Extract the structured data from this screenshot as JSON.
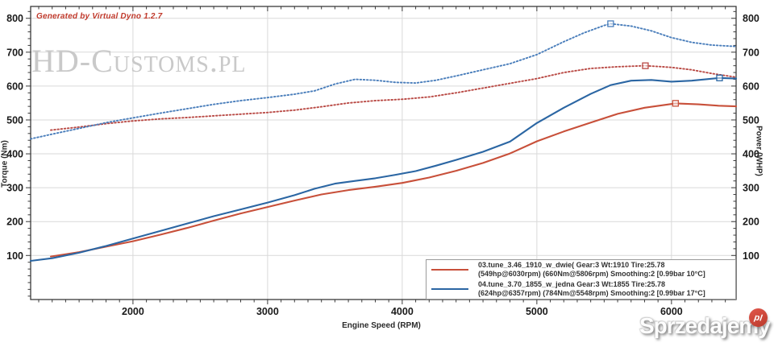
{
  "branding": {
    "generated_by": "Generated by Virtual Dyno 1.2.7",
    "watermark": "HD-Customs.pl",
    "site_logo": {
      "word": "Sprzedajemy",
      "badge": "pl",
      "badge_color": "#c0392b"
    }
  },
  "colors": {
    "red_dotted": "#b94a45",
    "red_solid": "#c8503a",
    "blue_dotted": "#4a7ebb",
    "blue_solid": "#2b66a3",
    "grid": "#d9d9d9",
    "spine": "#3a3a3a",
    "tick_label": "#1a1a1a"
  },
  "legend": {
    "entries": [
      {
        "color": "#c8503a",
        "line1": "03.tune_3.46_1910_w_dwie( Gear:3 Wt:1910 Tire:25.78",
        "line2": "(549hp@6030rpm) (660Nm@5806rpm) Smoothing:2 [0.99bar 10°C]"
      },
      {
        "color": "#2b66a3",
        "line1": "04.tune_3.70_1855_w_jedna Gear:3 Wt:1855 Tire:25.78",
        "line2": "(624hp@6357rpm) (784Nm@5548rpm) Smoothing:2 [0.99bar 17°C]"
      }
    ]
  },
  "chart_data": {
    "type": "line",
    "title": "",
    "xlabel": "Engine Speed (RPM)",
    "ylabel_left": "Torque (Nm)",
    "ylabel_right": "Power (WHP)",
    "xlim": [
      1240,
      6480
    ],
    "ylim": [
      -30,
      835
    ],
    "x_ticks": [
      2000,
      3000,
      4000,
      5000,
      6000
    ],
    "x_minor_step": 100,
    "y_ticks": [
      100,
      200,
      300,
      400,
      500,
      600,
      700,
      800
    ],
    "y_minor_step": 20,
    "grid": true,
    "legend_position": "bottom-right",
    "series": [
      {
        "name": "03.tune torque (Nm)",
        "color": "#b94a45",
        "style": "dotted",
        "points": [
          [
            1390,
            470
          ],
          [
            1600,
            479
          ],
          [
            1800,
            489
          ],
          [
            2000,
            497
          ],
          [
            2200,
            503
          ],
          [
            2400,
            507
          ],
          [
            2600,
            512
          ],
          [
            2800,
            517
          ],
          [
            3000,
            522
          ],
          [
            3200,
            529
          ],
          [
            3400,
            539
          ],
          [
            3600,
            550
          ],
          [
            3800,
            557
          ],
          [
            4000,
            561
          ],
          [
            4200,
            568
          ],
          [
            4400,
            580
          ],
          [
            4600,
            594
          ],
          [
            4800,
            608
          ],
          [
            5000,
            622
          ],
          [
            5200,
            640
          ],
          [
            5400,
            652
          ],
          [
            5600,
            657
          ],
          [
            5806,
            660
          ],
          [
            6000,
            655
          ],
          [
            6150,
            648
          ],
          [
            6300,
            637
          ],
          [
            6480,
            626
          ]
        ]
      },
      {
        "name": "04.tune torque (Nm)",
        "color": "#4a7ebb",
        "style": "dotted",
        "points": [
          [
            1240,
            444
          ],
          [
            1400,
            458
          ],
          [
            1600,
            475
          ],
          [
            1800,
            492
          ],
          [
            2000,
            506
          ],
          [
            2200,
            520
          ],
          [
            2400,
            533
          ],
          [
            2600,
            546
          ],
          [
            2800,
            557
          ],
          [
            3000,
            566
          ],
          [
            3200,
            576
          ],
          [
            3350,
            586
          ],
          [
            3500,
            606
          ],
          [
            3650,
            620
          ],
          [
            3800,
            617
          ],
          [
            3950,
            611
          ],
          [
            4100,
            609
          ],
          [
            4250,
            617
          ],
          [
            4400,
            630
          ],
          [
            4600,
            648
          ],
          [
            4800,
            666
          ],
          [
            5000,
            693
          ],
          [
            5200,
            731
          ],
          [
            5350,
            757
          ],
          [
            5500,
            779
          ],
          [
            5548,
            784
          ],
          [
            5700,
            777
          ],
          [
            5850,
            763
          ],
          [
            6000,
            743
          ],
          [
            6150,
            729
          ],
          [
            6300,
            721
          ],
          [
            6480,
            717
          ]
        ]
      },
      {
        "name": "03.tune power (WHP)",
        "color": "#c8503a",
        "style": "solid",
        "points": [
          [
            1390,
            97
          ],
          [
            1600,
            110
          ],
          [
            1800,
            126
          ],
          [
            2000,
            142
          ],
          [
            2200,
            161
          ],
          [
            2400,
            181
          ],
          [
            2600,
            203
          ],
          [
            2800,
            224
          ],
          [
            3000,
            243
          ],
          [
            3200,
            262
          ],
          [
            3400,
            280
          ],
          [
            3600,
            293
          ],
          [
            3800,
            303
          ],
          [
            4000,
            314
          ],
          [
            4200,
            330
          ],
          [
            4400,
            350
          ],
          [
            4600,
            373
          ],
          [
            4800,
            401
          ],
          [
            5000,
            437
          ],
          [
            5200,
            466
          ],
          [
            5400,
            492
          ],
          [
            5600,
            518
          ],
          [
            5800,
            536
          ],
          [
            6030,
            549
          ],
          [
            6200,
            546
          ],
          [
            6350,
            542
          ],
          [
            6480,
            540
          ]
        ]
      },
      {
        "name": "04.tune power (WHP)",
        "color": "#2b66a3",
        "style": "solid",
        "points": [
          [
            1240,
            84
          ],
          [
            1400,
            92
          ],
          [
            1600,
            108
          ],
          [
            1800,
            128
          ],
          [
            2000,
            150
          ],
          [
            2200,
            172
          ],
          [
            2400,
            194
          ],
          [
            2600,
            216
          ],
          [
            2800,
            236
          ],
          [
            3000,
            256
          ],
          [
            3200,
            278
          ],
          [
            3350,
            297
          ],
          [
            3500,
            312
          ],
          [
            3650,
            320
          ],
          [
            3800,
            328
          ],
          [
            3950,
            338
          ],
          [
            4100,
            349
          ],
          [
            4250,
            365
          ],
          [
            4400,
            382
          ],
          [
            4600,
            406
          ],
          [
            4800,
            436
          ],
          [
            5000,
            491
          ],
          [
            5200,
            536
          ],
          [
            5400,
            577
          ],
          [
            5550,
            603
          ],
          [
            5700,
            616
          ],
          [
            5850,
            618
          ],
          [
            6000,
            613
          ],
          [
            6150,
            616
          ],
          [
            6357,
            624
          ],
          [
            6480,
            622
          ]
        ]
      }
    ],
    "peak_markers": [
      {
        "x": 5548,
        "y": 784,
        "color": "#4a7ebb",
        "label": "784Nm@5548rpm"
      },
      {
        "x": 5806,
        "y": 660,
        "color": "#b94a45",
        "label": "660Nm@5806rpm"
      },
      {
        "x": 6030,
        "y": 549,
        "color": "#c8503a",
        "label": "549hp@6030rpm"
      },
      {
        "x": 6357,
        "y": 624,
        "color": "#2b66a3",
        "label": "624hp@6357rpm"
      }
    ]
  }
}
